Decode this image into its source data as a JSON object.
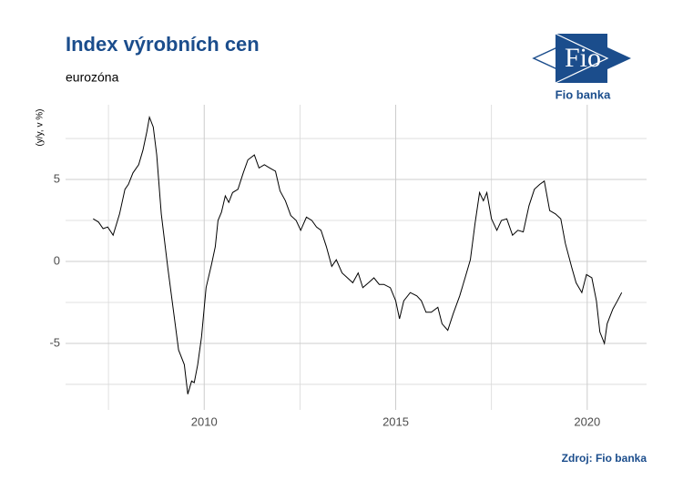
{
  "chart_data": {
    "type": "line",
    "title": "Index výrobních cen",
    "subtitle": "eurozóna",
    "y_label": "(y/y, v %)",
    "source": "Zdroj: Fio banka",
    "logo": {
      "mark": "Fio",
      "name": "Fio banka"
    },
    "color": "#000000",
    "xlim": [
      2006.38,
      2021.55
    ],
    "ylim": [
      -9.06,
      9.56
    ],
    "xticks": [
      2010,
      2015,
      2020
    ],
    "yticks": [
      -5,
      0,
      5
    ],
    "xminor": [
      2007.5,
      2012.5,
      2017.5
    ],
    "yminor": [
      -7.5,
      -2.5,
      2.5,
      7.5
    ],
    "grid": true,
    "x": [
      2007.1,
      2007.24,
      2007.36,
      2007.48,
      2007.62,
      2007.79,
      2007.93,
      2008.02,
      2008.14,
      2008.29,
      2008.4,
      2008.5,
      2008.57,
      2008.67,
      2008.76,
      2008.88,
      2009.05,
      2009.19,
      2009.33,
      2009.48,
      2009.57,
      2009.67,
      2009.74,
      2009.83,
      2009.93,
      2010.05,
      2010.19,
      2010.29,
      2010.36,
      2010.45,
      2010.55,
      2010.64,
      2010.74,
      2010.88,
      2011.02,
      2011.14,
      2011.31,
      2011.43,
      2011.57,
      2011.71,
      2011.86,
      2011.98,
      2012.12,
      2012.26,
      2012.4,
      2012.52,
      2012.67,
      2012.81,
      2012.93,
      2013.05,
      2013.19,
      2013.33,
      2013.45,
      2013.6,
      2013.74,
      2013.88,
      2014.02,
      2014.14,
      2014.29,
      2014.43,
      2014.57,
      2014.69,
      2014.86,
      2015.0,
      2015.1,
      2015.21,
      2015.38,
      2015.55,
      2015.67,
      2015.79,
      2015.93,
      2016.1,
      2016.21,
      2016.36,
      2016.5,
      2016.67,
      2016.81,
      2016.95,
      2017.07,
      2017.19,
      2017.29,
      2017.38,
      2017.5,
      2017.64,
      2017.76,
      2017.9,
      2018.05,
      2018.19,
      2018.33,
      2018.48,
      2018.62,
      2018.76,
      2018.88,
      2019.02,
      2019.17,
      2019.31,
      2019.43,
      2019.6,
      2019.71,
      2019.86,
      2019.98,
      2020.12,
      2020.24,
      2020.33,
      2020.45,
      2020.52,
      2020.67,
      2020.79,
      2020.9
    ],
    "values": [
      2.6,
      2.4,
      2.0,
      2.1,
      1.6,
      2.9,
      4.4,
      4.7,
      5.4,
      5.9,
      6.8,
      7.9,
      8.8,
      8.2,
      6.5,
      2.9,
      -0.4,
      -2.9,
      -5.4,
      -6.3,
      -8.1,
      -7.3,
      -7.4,
      -6.3,
      -4.6,
      -1.6,
      -0.2,
      0.9,
      2.5,
      3.0,
      4.0,
      3.6,
      4.2,
      4.4,
      5.4,
      6.2,
      6.5,
      5.7,
      5.9,
      5.7,
      5.5,
      4.3,
      3.7,
      2.8,
      2.5,
      1.9,
      2.7,
      2.5,
      2.1,
      1.9,
      0.9,
      -0.3,
      0.1,
      -0.7,
      -1.0,
      -1.3,
      -0.7,
      -1.6,
      -1.3,
      -1.0,
      -1.4,
      -1.4,
      -1.6,
      -2.4,
      -3.5,
      -2.4,
      -1.9,
      -2.1,
      -2.4,
      -3.1,
      -3.1,
      -2.8,
      -3.8,
      -4.2,
      -3.2,
      -2.1,
      -1.0,
      0.1,
      2.3,
      4.2,
      3.7,
      4.2,
      2.6,
      1.9,
      2.5,
      2.6,
      1.6,
      1.9,
      1.8,
      3.4,
      4.4,
      4.7,
      4.9,
      3.1,
      2.9,
      2.6,
      1.1,
      -0.4,
      -1.3,
      -1.9,
      -0.8,
      -1.0,
      -2.4,
      -4.3,
      -5.0,
      -3.8,
      -2.9,
      -2.4,
      -1.9
    ]
  }
}
